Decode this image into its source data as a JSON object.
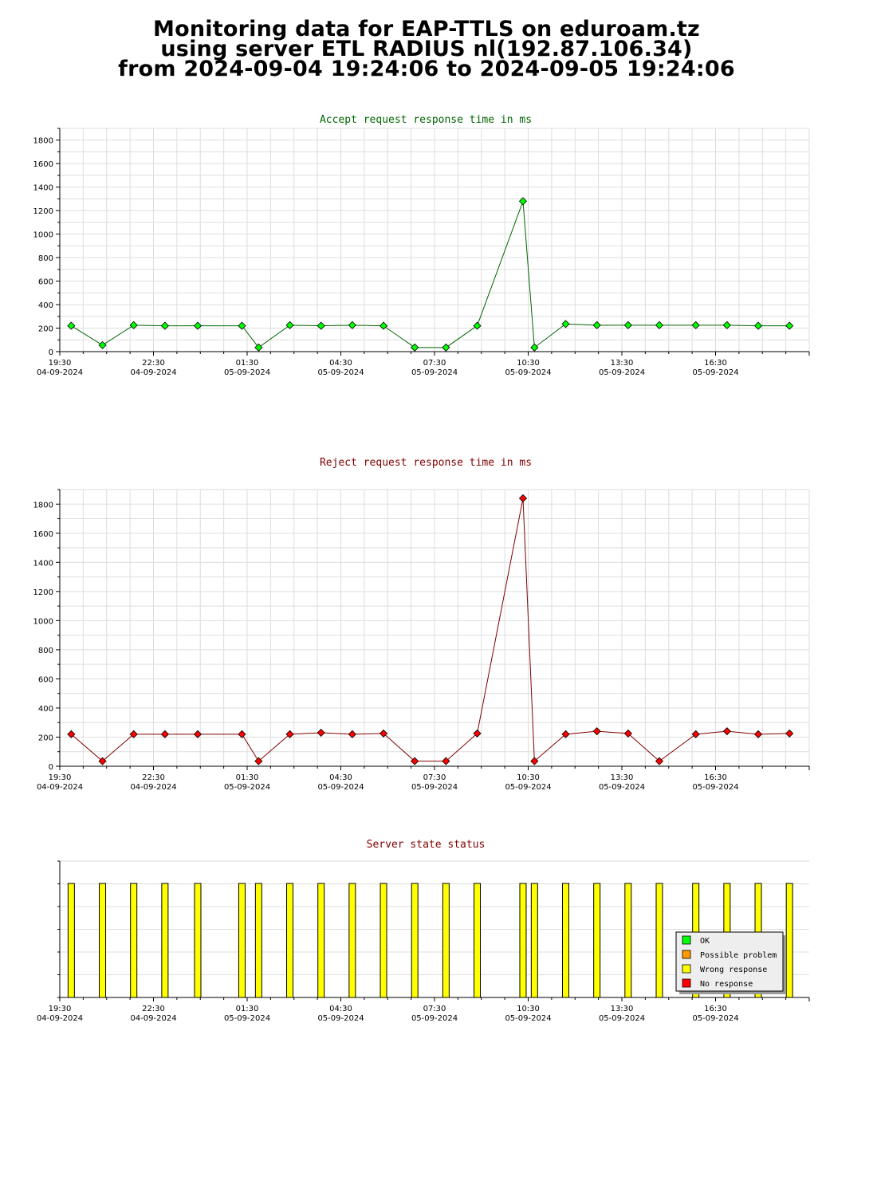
{
  "header": {
    "line1": "Monitoring data for EAP-TTLS on eduroam.tz",
    "line2": "using server ETL RADIUS nl(192.87.106.34)",
    "line3": "from 2024-09-04 19:24:06 to 2024-09-05 19:24:06"
  },
  "x_axis_ticks": [
    {
      "time": "19:30",
      "date": "04-09-2024"
    },
    {
      "time": "22:30",
      "date": "04-09-2024"
    },
    {
      "time": "01:30",
      "date": "05-09-2024"
    },
    {
      "time": "04:30",
      "date": "05-09-2024"
    },
    {
      "time": "07:30",
      "date": "05-09-2024"
    },
    {
      "time": "10:30",
      "date": "05-09-2024"
    },
    {
      "time": "13:30",
      "date": "05-09-2024"
    },
    {
      "time": "16:30",
      "date": "05-09-2024"
    }
  ],
  "colors": {
    "accept_line": "#006400",
    "accept_marker": "#00ff00",
    "reject_line": "#800000",
    "reject_marker": "#ff0000",
    "status_bar": "#ffff00",
    "accept_title": "#006400",
    "reject_title": "#800000",
    "status_title": "#800000",
    "grid": "#dddddd"
  },
  "chart_data": [
    {
      "type": "line",
      "title": "Accept request response time in ms",
      "x": [
        "19:52",
        "20:52",
        "21:52",
        "22:52",
        "23:55",
        "01:20",
        "01:52",
        "02:52",
        "03:52",
        "04:52",
        "05:52",
        "06:52",
        "07:52",
        "08:52",
        "10:20",
        "10:42",
        "11:42",
        "12:42",
        "13:42",
        "14:42",
        "15:52",
        "16:52",
        "17:52",
        "18:52"
      ],
      "values": [
        220,
        55,
        225,
        220,
        220,
        220,
        35,
        225,
        220,
        225,
        220,
        35,
        35,
        220,
        1280,
        35,
        235,
        225,
        225,
        225,
        225,
        225,
        220,
        220
      ],
      "ylim": [
        0,
        1900
      ],
      "yticks": [
        0,
        200,
        400,
        600,
        800,
        1000,
        1200,
        1400,
        1600,
        1800
      ],
      "grid": true
    },
    {
      "type": "line",
      "title": "Reject request response time in ms",
      "x": [
        "19:52",
        "20:52",
        "21:52",
        "22:52",
        "23:55",
        "01:20",
        "01:52",
        "02:52",
        "03:52",
        "04:52",
        "05:52",
        "06:52",
        "07:52",
        "08:52",
        "10:20",
        "10:42",
        "11:42",
        "12:42",
        "13:42",
        "14:42",
        "15:52",
        "16:52",
        "17:52",
        "18:52"
      ],
      "values": [
        220,
        35,
        220,
        220,
        220,
        220,
        35,
        220,
        230,
        220,
        225,
        35,
        35,
        225,
        1840,
        35,
        220,
        240,
        225,
        35,
        220,
        240,
        220,
        225
      ],
      "ylim": [
        0,
        1900
      ],
      "yticks": [
        0,
        200,
        400,
        600,
        800,
        1000,
        1200,
        1400,
        1600,
        1800
      ],
      "grid": true
    },
    {
      "type": "bar",
      "title": "Server state status",
      "x": [
        "19:52",
        "20:52",
        "21:52",
        "22:52",
        "23:55",
        "01:20",
        "01:52",
        "02:52",
        "03:52",
        "04:52",
        "05:52",
        "06:52",
        "07:52",
        "08:52",
        "10:20",
        "10:42",
        "11:42",
        "12:42",
        "13:42",
        "14:42",
        "15:52",
        "16:52",
        "17:52",
        "18:52"
      ],
      "status": [
        "Wrong response",
        "Wrong response",
        "Wrong response",
        "Wrong response",
        "Wrong response",
        "Wrong response",
        "Wrong response",
        "Wrong response",
        "Wrong response",
        "Wrong response",
        "Wrong response",
        "Wrong response",
        "Wrong response",
        "Wrong response",
        "Wrong response",
        "Wrong response",
        "Wrong response",
        "Wrong response",
        "Wrong response",
        "Wrong response",
        "Wrong response",
        "Wrong response",
        "Wrong response",
        "Wrong response"
      ],
      "legend": [
        {
          "label": "OK",
          "color": "#00ff00"
        },
        {
          "label": "Possible problem",
          "color": "#ff9900"
        },
        {
          "label": "Wrong response",
          "color": "#ffff00"
        },
        {
          "label": "No response",
          "color": "#ff0000"
        }
      ],
      "legend_position": "bottom-right"
    }
  ]
}
